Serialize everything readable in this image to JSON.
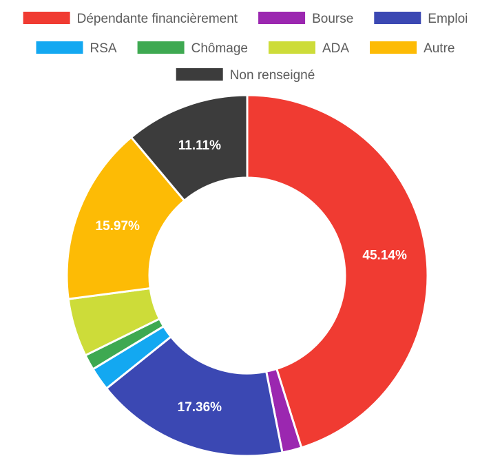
{
  "chart_data": {
    "type": "pie",
    "donut": true,
    "legend_position": "top",
    "unit": "%",
    "series": [
      {
        "name": "Dépendante financièrement",
        "value": 45.14,
        "color": "#f03b32",
        "label": "45.14%"
      },
      {
        "name": "Bourse",
        "value": 1.74,
        "color": "#9b27b0",
        "label": ""
      },
      {
        "name": "Emploi",
        "value": 17.36,
        "color": "#3b48b3",
        "label": "17.36%"
      },
      {
        "name": "RSA",
        "value": 2.08,
        "color": "#13a8f1",
        "label": ""
      },
      {
        "name": "Chômage",
        "value": 1.39,
        "color": "#3ea951",
        "label": ""
      },
      {
        "name": "ADA",
        "value": 5.21,
        "color": "#cddc39",
        "label": ""
      },
      {
        "name": "Autre",
        "value": 15.97,
        "color": "#fdbb05",
        "label": "15.97%"
      },
      {
        "name": "Non renseigné",
        "value": 11.11,
        "color": "#3c3c3c",
        "label": "11.11%"
      }
    ]
  }
}
